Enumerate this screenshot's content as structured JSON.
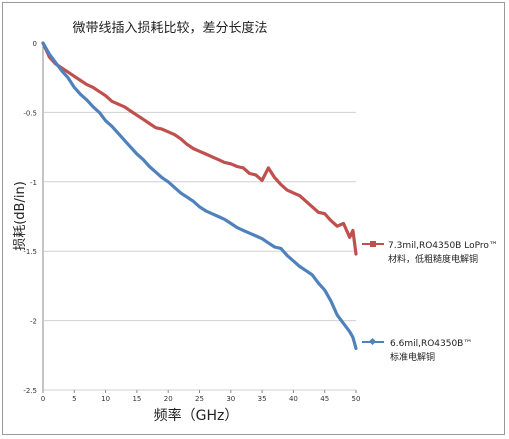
{
  "chart_data": {
    "type": "line",
    "title": "微带线插入损耗比较，差分长度法",
    "xlabel": "频率（GHz）",
    "ylabel": "损耗(dB/in)",
    "xlim": [
      0,
      50
    ],
    "ylim": [
      -2.5,
      0
    ],
    "xticks": [
      "0",
      "5",
      "10",
      "15",
      "20",
      "25",
      "30",
      "35",
      "40",
      "45",
      "50"
    ],
    "yticks": [
      "0",
      "-0.5",
      "-1",
      "-1.5",
      "-2",
      "-2.5"
    ],
    "grid": "horizontal",
    "legend_position": "right",
    "series": [
      {
        "name": "7.3mil,RO4350B LoPro™ 材料，低粗糙度电解铜",
        "legend_line1": "7.3mil,RO4350B LoPro™",
        "legend_line2": "材料，低粗糙度电解铜",
        "color": "#c0504d",
        "marker": "square",
        "x": [
          0,
          1,
          2,
          3,
          4,
          5,
          6,
          7,
          8,
          9,
          10,
          11,
          12,
          13,
          14,
          15,
          16,
          17,
          18,
          19,
          20,
          21,
          22,
          23,
          24,
          25,
          26,
          27,
          28,
          29,
          30,
          31,
          32,
          33,
          34,
          35,
          36,
          37,
          38,
          39,
          40,
          41,
          42,
          43,
          44,
          45,
          46,
          47,
          48,
          49,
          49.5,
          50
        ],
        "y": [
          0,
          -0.1,
          -0.15,
          -0.18,
          -0.21,
          -0.24,
          -0.27,
          -0.3,
          -0.32,
          -0.35,
          -0.38,
          -0.42,
          -0.44,
          -0.46,
          -0.49,
          -0.52,
          -0.55,
          -0.58,
          -0.61,
          -0.62,
          -0.64,
          -0.66,
          -0.69,
          -0.73,
          -0.76,
          -0.78,
          -0.8,
          -0.82,
          -0.84,
          -0.86,
          -0.87,
          -0.89,
          -0.9,
          -0.94,
          -0.95,
          -0.99,
          -0.9,
          -0.97,
          -1.02,
          -1.06,
          -1.08,
          -1.1,
          -1.14,
          -1.18,
          -1.22,
          -1.23,
          -1.28,
          -1.32,
          -1.3,
          -1.4,
          -1.35,
          -1.52
        ]
      },
      {
        "name": "6.6mil,RO4350B™ 标准电解铜",
        "legend_line1": "6.6mil,RO4350B™",
        "legend_line2": "标准电解铜",
        "color": "#4f81bd",
        "marker": "diamond",
        "x": [
          0,
          1,
          2,
          3,
          4,
          5,
          6,
          7,
          8,
          9,
          10,
          11,
          12,
          13,
          14,
          15,
          16,
          17,
          18,
          19,
          20,
          21,
          22,
          23,
          24,
          25,
          26,
          27,
          28,
          29,
          30,
          31,
          32,
          33,
          34,
          35,
          36,
          37,
          38,
          39,
          40,
          41,
          42,
          43,
          44,
          45,
          46,
          47,
          48,
          49,
          49.5,
          50
        ],
        "y": [
          0,
          -0.08,
          -0.14,
          -0.2,
          -0.25,
          -0.32,
          -0.37,
          -0.41,
          -0.46,
          -0.5,
          -0.56,
          -0.6,
          -0.65,
          -0.7,
          -0.75,
          -0.8,
          -0.84,
          -0.89,
          -0.93,
          -0.97,
          -1.0,
          -1.04,
          -1.08,
          -1.11,
          -1.14,
          -1.18,
          -1.21,
          -1.23,
          -1.25,
          -1.27,
          -1.3,
          -1.33,
          -1.35,
          -1.37,
          -1.39,
          -1.41,
          -1.44,
          -1.47,
          -1.48,
          -1.53,
          -1.57,
          -1.61,
          -1.64,
          -1.67,
          -1.73,
          -1.78,
          -1.86,
          -1.96,
          -2.02,
          -2.08,
          -2.12,
          -2.2
        ]
      }
    ]
  }
}
